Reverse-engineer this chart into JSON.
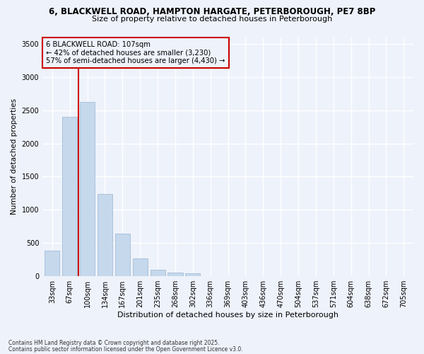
{
  "title_line1": "6, BLACKWELL ROAD, HAMPTON HARGATE, PETERBOROUGH, PE7 8BP",
  "title_line2": "Size of property relative to detached houses in Peterborough",
  "xlabel": "Distribution of detached houses by size in Peterborough",
  "ylabel": "Number of detached properties",
  "categories": [
    "33sqm",
    "67sqm",
    "100sqm",
    "134sqm",
    "167sqm",
    "201sqm",
    "235sqm",
    "268sqm",
    "302sqm",
    "336sqm",
    "369sqm",
    "403sqm",
    "436sqm",
    "470sqm",
    "504sqm",
    "537sqm",
    "571sqm",
    "604sqm",
    "638sqm",
    "672sqm",
    "705sqm"
  ],
  "values": [
    390,
    2400,
    2620,
    1240,
    640,
    270,
    100,
    55,
    40,
    0,
    0,
    0,
    0,
    0,
    0,
    0,
    0,
    0,
    0,
    0,
    0
  ],
  "bar_color": "#c5d8ec",
  "bar_edge_color": "#9ab5d0",
  "vline_x": 1.5,
  "vline_color": "#cc0000",
  "annotation_title": "6 BLACKWELL ROAD: 107sqm",
  "annotation_line1": "← 42% of detached houses are smaller (3,230)",
  "annotation_line2": "57% of semi-detached houses are larger (4,430) →",
  "annotation_box_edge_color": "#cc0000",
  "ylim": [
    0,
    3600
  ],
  "yticks": [
    0,
    500,
    1000,
    1500,
    2000,
    2500,
    3000,
    3500
  ],
  "footnote1": "Contains HM Land Registry data © Crown copyright and database right 2025.",
  "footnote2": "Contains public sector information licensed under the Open Government Licence v3.0.",
  "bg_color": "#eef2fb",
  "grid_color": "#ffffff"
}
